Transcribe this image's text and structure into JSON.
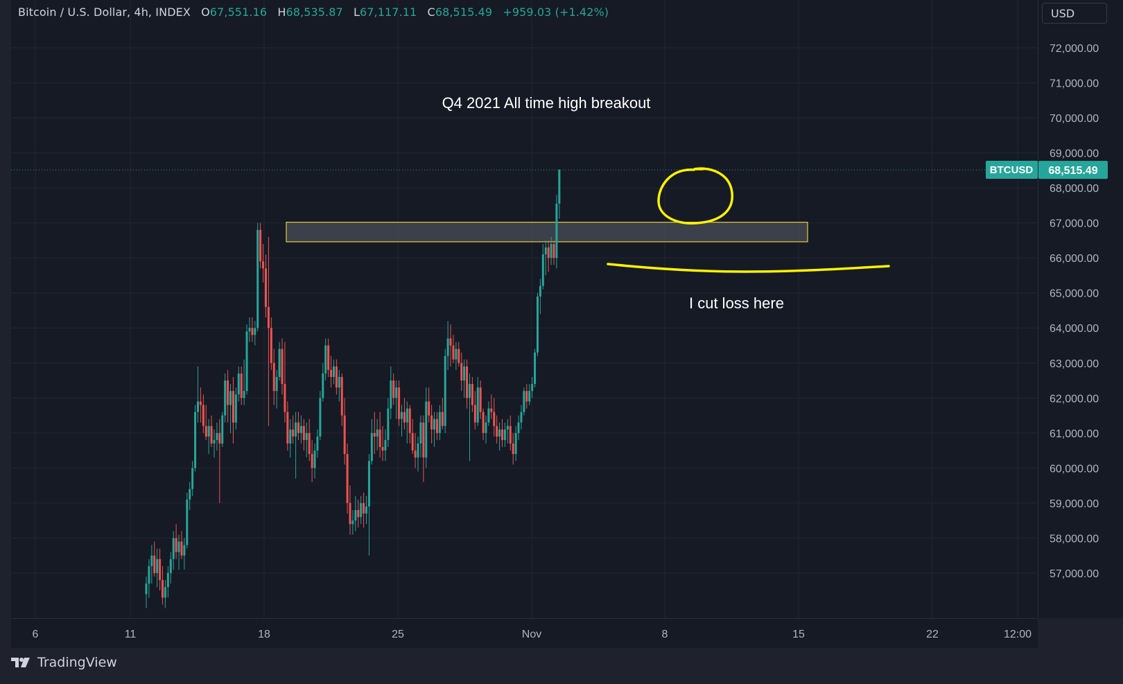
{
  "legend": {
    "symbol": "Bitcoin / U.S. Dollar, 4h, INDEX",
    "o_label": "O",
    "o_value": "67,551.16",
    "h_label": "H",
    "h_value": "68,535.87",
    "l_label": "L",
    "l_value": "67,117.11",
    "c_label": "C",
    "c_value": "68,515.49",
    "change": "+959.03 (+1.42%)"
  },
  "currency": "USD",
  "brand": "TradingView",
  "price_tag": {
    "symbol": "BTCUSD",
    "price": "68,515.49"
  },
  "colors": {
    "up": "#26a69a",
    "down": "#ef5350",
    "annotation": "#fff200",
    "background": "#161a25"
  },
  "annotations": {
    "title": "Q4 2021 All time high breakout",
    "cut_loss": "I cut loss here"
  },
  "chart_data": {
    "type": "candlestick",
    "timeframe": "4h",
    "y_ticks": [
      "72,000.00",
      "71,000.00",
      "70,000.00",
      "69,000.00",
      "68,000.00",
      "67,000.00",
      "66,000.00",
      "65,000.00",
      "64,000.00",
      "63,000.00",
      "62,000.00",
      "61,000.00",
      "60,000.00",
      "59,000.00",
      "58,000.00",
      "57,000.00"
    ],
    "x_ticks": [
      "6",
      "11",
      "18",
      "25",
      "Nov",
      "8",
      "15",
      "22",
      "12:00"
    ],
    "ylim": [
      56200,
      73300
    ],
    "last_price": 68515.49,
    "resistance_zone": [
      66500,
      67000
    ],
    "support_line": 65900,
    "series": [
      {
        "o": 56400,
        "h": 56900,
        "l": 56000,
        "c": 56700
      },
      {
        "o": 56700,
        "h": 57400,
        "l": 56300,
        "c": 57200
      },
      {
        "o": 57200,
        "h": 57800,
        "l": 56700,
        "c": 57500
      },
      {
        "o": 57500,
        "h": 57900,
        "l": 56900,
        "c": 57000
      },
      {
        "o": 57000,
        "h": 57700,
        "l": 56600,
        "c": 57400
      },
      {
        "o": 57400,
        "h": 57700,
        "l": 56500,
        "c": 56800
      },
      {
        "o": 56800,
        "h": 57200,
        "l": 56100,
        "c": 56300
      },
      {
        "o": 56300,
        "h": 56800,
        "l": 56000,
        "c": 56600
      },
      {
        "o": 56600,
        "h": 57200,
        "l": 56300,
        "c": 57000
      },
      {
        "o": 57000,
        "h": 57600,
        "l": 56700,
        "c": 57400
      },
      {
        "o": 57400,
        "h": 58200,
        "l": 57100,
        "c": 58000
      },
      {
        "o": 58000,
        "h": 58400,
        "l": 57400,
        "c": 57600
      },
      {
        "o": 57600,
        "h": 58100,
        "l": 57100,
        "c": 57900
      },
      {
        "o": 57900,
        "h": 58200,
        "l": 57400,
        "c": 57500
      },
      {
        "o": 57500,
        "h": 58000,
        "l": 57100,
        "c": 57800
      },
      {
        "o": 57800,
        "h": 59300,
        "l": 57700,
        "c": 59100
      },
      {
        "o": 59100,
        "h": 59600,
        "l": 58800,
        "c": 59400
      },
      {
        "o": 59400,
        "h": 60200,
        "l": 59200,
        "c": 60000
      },
      {
        "o": 60000,
        "h": 61800,
        "l": 59900,
        "c": 61600
      },
      {
        "o": 61600,
        "h": 62900,
        "l": 61300,
        "c": 61900
      },
      {
        "o": 61900,
        "h": 62300,
        "l": 61300,
        "c": 61800
      },
      {
        "o": 61800,
        "h": 62100,
        "l": 61000,
        "c": 61200
      },
      {
        "o": 61200,
        "h": 61800,
        "l": 60800,
        "c": 60900
      },
      {
        "o": 60900,
        "h": 61400,
        "l": 60400,
        "c": 61200
      },
      {
        "o": 61200,
        "h": 61500,
        "l": 60600,
        "c": 60700
      },
      {
        "o": 60700,
        "h": 61100,
        "l": 60300,
        "c": 60800
      },
      {
        "o": 60800,
        "h": 61300,
        "l": 60500,
        "c": 61000
      },
      {
        "o": 61000,
        "h": 61400,
        "l": 59000,
        "c": 60700
      },
      {
        "o": 60700,
        "h": 61600,
        "l": 60600,
        "c": 61500
      },
      {
        "o": 61500,
        "h": 62700,
        "l": 61300,
        "c": 62500
      },
      {
        "o": 62500,
        "h": 62800,
        "l": 61300,
        "c": 61800
      },
      {
        "o": 61800,
        "h": 62400,
        "l": 61000,
        "c": 62200
      },
      {
        "o": 62200,
        "h": 62600,
        "l": 60700,
        "c": 61300
      },
      {
        "o": 61300,
        "h": 62300,
        "l": 61100,
        "c": 62100
      },
      {
        "o": 62100,
        "h": 62900,
        "l": 61900,
        "c": 62700
      },
      {
        "o": 62700,
        "h": 62900,
        "l": 61800,
        "c": 62000
      },
      {
        "o": 62000,
        "h": 63100,
        "l": 61800,
        "c": 62200
      },
      {
        "o": 62200,
        "h": 64100,
        "l": 62100,
        "c": 63900
      },
      {
        "o": 63900,
        "h": 64300,
        "l": 63600,
        "c": 64000
      },
      {
        "o": 64000,
        "h": 64300,
        "l": 63600,
        "c": 63800
      },
      {
        "o": 63800,
        "h": 64200,
        "l": 63500,
        "c": 64000
      },
      {
        "o": 64000,
        "h": 67000,
        "l": 63900,
        "c": 66800
      },
      {
        "o": 66800,
        "h": 67000,
        "l": 65700,
        "c": 65900
      },
      {
        "o": 65900,
        "h": 66400,
        "l": 65300,
        "c": 65700
      },
      {
        "o": 65700,
        "h": 66100,
        "l": 64300,
        "c": 64600
      },
      {
        "o": 64600,
        "h": 66600,
        "l": 61200,
        "c": 64000
      },
      {
        "o": 64000,
        "h": 64300,
        "l": 62800,
        "c": 63000
      },
      {
        "o": 63000,
        "h": 63400,
        "l": 61800,
        "c": 62200
      },
      {
        "o": 62200,
        "h": 62800,
        "l": 61700,
        "c": 62600
      },
      {
        "o": 62600,
        "h": 63600,
        "l": 62500,
        "c": 63400
      },
      {
        "o": 63400,
        "h": 63700,
        "l": 62100,
        "c": 62400
      },
      {
        "o": 62400,
        "h": 63600,
        "l": 61300,
        "c": 61600
      },
      {
        "o": 61600,
        "h": 61900,
        "l": 60500,
        "c": 60700
      },
      {
        "o": 60700,
        "h": 61400,
        "l": 60300,
        "c": 61100
      },
      {
        "o": 61100,
        "h": 61500,
        "l": 60700,
        "c": 60900
      },
      {
        "o": 60900,
        "h": 61600,
        "l": 59700,
        "c": 61300
      },
      {
        "o": 61300,
        "h": 61600,
        "l": 60800,
        "c": 61000
      },
      {
        "o": 61000,
        "h": 61500,
        "l": 60700,
        "c": 61200
      },
      {
        "o": 61200,
        "h": 61400,
        "l": 60500,
        "c": 60800
      },
      {
        "o": 60800,
        "h": 61300,
        "l": 60300,
        "c": 61000
      },
      {
        "o": 61000,
        "h": 61400,
        "l": 60200,
        "c": 60400
      },
      {
        "o": 60400,
        "h": 60800,
        "l": 59600,
        "c": 60000
      },
      {
        "o": 60000,
        "h": 60700,
        "l": 59700,
        "c": 60500
      },
      {
        "o": 60500,
        "h": 61100,
        "l": 60300,
        "c": 60900
      },
      {
        "o": 60900,
        "h": 62200,
        "l": 60800,
        "c": 62000
      },
      {
        "o": 62000,
        "h": 63000,
        "l": 61900,
        "c": 62700
      },
      {
        "o": 62700,
        "h": 63700,
        "l": 62500,
        "c": 63500
      },
      {
        "o": 63500,
        "h": 63700,
        "l": 62600,
        "c": 62800
      },
      {
        "o": 62800,
        "h": 63200,
        "l": 62300,
        "c": 62600
      },
      {
        "o": 62600,
        "h": 63100,
        "l": 62400,
        "c": 62900
      },
      {
        "o": 62900,
        "h": 63100,
        "l": 62100,
        "c": 62300
      },
      {
        "o": 62300,
        "h": 62800,
        "l": 61900,
        "c": 62600
      },
      {
        "o": 62600,
        "h": 62700,
        "l": 61200,
        "c": 61500
      },
      {
        "o": 61500,
        "h": 62000,
        "l": 60100,
        "c": 60400
      },
      {
        "o": 60400,
        "h": 60700,
        "l": 58700,
        "c": 59000
      },
      {
        "o": 59000,
        "h": 59500,
        "l": 58100,
        "c": 58400
      },
      {
        "o": 58400,
        "h": 58800,
        "l": 58100,
        "c": 58500
      },
      {
        "o": 58500,
        "h": 59200,
        "l": 58200,
        "c": 58800
      },
      {
        "o": 58800,
        "h": 59100,
        "l": 58300,
        "c": 58600
      },
      {
        "o": 58600,
        "h": 59200,
        "l": 58400,
        "c": 59000
      },
      {
        "o": 59000,
        "h": 59300,
        "l": 58300,
        "c": 58700
      },
      {
        "o": 58700,
        "h": 59200,
        "l": 58400,
        "c": 58900
      },
      {
        "o": 58900,
        "h": 60400,
        "l": 57500,
        "c": 60200
      },
      {
        "o": 60200,
        "h": 61400,
        "l": 60100,
        "c": 61000
      },
      {
        "o": 61000,
        "h": 61600,
        "l": 60400,
        "c": 60900
      },
      {
        "o": 60900,
        "h": 61400,
        "l": 60500,
        "c": 61100
      },
      {
        "o": 61100,
        "h": 61600,
        "l": 60300,
        "c": 60600
      },
      {
        "o": 60600,
        "h": 61200,
        "l": 60200,
        "c": 60500
      },
      {
        "o": 60500,
        "h": 61100,
        "l": 60200,
        "c": 60800
      },
      {
        "o": 60800,
        "h": 62000,
        "l": 60600,
        "c": 61700
      },
      {
        "o": 61700,
        "h": 62900,
        "l": 61400,
        "c": 62500
      },
      {
        "o": 62500,
        "h": 62700,
        "l": 61800,
        "c": 62000
      },
      {
        "o": 62000,
        "h": 62500,
        "l": 61400,
        "c": 62300
      },
      {
        "o": 62300,
        "h": 62500,
        "l": 61200,
        "c": 61400
      },
      {
        "o": 61400,
        "h": 61800,
        "l": 60900,
        "c": 61600
      },
      {
        "o": 61600,
        "h": 62000,
        "l": 61100,
        "c": 61300
      },
      {
        "o": 61300,
        "h": 61900,
        "l": 60700,
        "c": 61700
      },
      {
        "o": 61700,
        "h": 61800,
        "l": 60700,
        "c": 61000
      },
      {
        "o": 61000,
        "h": 61400,
        "l": 60400,
        "c": 60500
      },
      {
        "o": 60500,
        "h": 61000,
        "l": 60000,
        "c": 60300
      },
      {
        "o": 60300,
        "h": 60900,
        "l": 59900,
        "c": 60700
      },
      {
        "o": 60700,
        "h": 61500,
        "l": 60300,
        "c": 61300
      },
      {
        "o": 61300,
        "h": 61500,
        "l": 59600,
        "c": 60300
      },
      {
        "o": 60300,
        "h": 62300,
        "l": 60000,
        "c": 61900
      },
      {
        "o": 61900,
        "h": 62300,
        "l": 61300,
        "c": 61500
      },
      {
        "o": 61500,
        "h": 61800,
        "l": 60700,
        "c": 61100
      },
      {
        "o": 61100,
        "h": 61600,
        "l": 60600,
        "c": 61400
      },
      {
        "o": 61400,
        "h": 61600,
        "l": 60800,
        "c": 61000
      },
      {
        "o": 61000,
        "h": 61800,
        "l": 60800,
        "c": 61600
      },
      {
        "o": 61600,
        "h": 62000,
        "l": 61100,
        "c": 61200
      },
      {
        "o": 61200,
        "h": 63400,
        "l": 61000,
        "c": 63200
      },
      {
        "o": 63200,
        "h": 64200,
        "l": 62800,
        "c": 63700
      },
      {
        "o": 63700,
        "h": 64100,
        "l": 62900,
        "c": 63500
      },
      {
        "o": 63500,
        "h": 63800,
        "l": 63000,
        "c": 63100
      },
      {
        "o": 63100,
        "h": 63600,
        "l": 62800,
        "c": 63400
      },
      {
        "o": 63400,
        "h": 63600,
        "l": 62900,
        "c": 63000
      },
      {
        "o": 63000,
        "h": 63300,
        "l": 62200,
        "c": 62500
      },
      {
        "o": 62500,
        "h": 63100,
        "l": 62000,
        "c": 62900
      },
      {
        "o": 62900,
        "h": 63100,
        "l": 61700,
        "c": 62000
      },
      {
        "o": 62000,
        "h": 62700,
        "l": 60200,
        "c": 62400
      },
      {
        "o": 62400,
        "h": 62600,
        "l": 61600,
        "c": 61800
      },
      {
        "o": 61800,
        "h": 62200,
        "l": 61100,
        "c": 61300
      },
      {
        "o": 61300,
        "h": 62600,
        "l": 61200,
        "c": 62300
      },
      {
        "o": 62300,
        "h": 62500,
        "l": 61400,
        "c": 61600
      },
      {
        "o": 61600,
        "h": 61700,
        "l": 60800,
        "c": 61000
      },
      {
        "o": 61000,
        "h": 61500,
        "l": 60700,
        "c": 61300
      },
      {
        "o": 61300,
        "h": 61900,
        "l": 61200,
        "c": 61700
      },
      {
        "o": 61700,
        "h": 62100,
        "l": 61400,
        "c": 61600
      },
      {
        "o": 61600,
        "h": 62000,
        "l": 60900,
        "c": 61200
      },
      {
        "o": 61200,
        "h": 61500,
        "l": 60700,
        "c": 60900
      },
      {
        "o": 60900,
        "h": 61300,
        "l": 60500,
        "c": 61100
      },
      {
        "o": 61100,
        "h": 61400,
        "l": 60600,
        "c": 60800
      },
      {
        "o": 60800,
        "h": 61300,
        "l": 60600,
        "c": 61100
      },
      {
        "o": 61100,
        "h": 61400,
        "l": 60700,
        "c": 61200
      },
      {
        "o": 61200,
        "h": 61500,
        "l": 60500,
        "c": 60700
      },
      {
        "o": 60700,
        "h": 61000,
        "l": 60100,
        "c": 60400
      },
      {
        "o": 60400,
        "h": 61200,
        "l": 60200,
        "c": 61000
      },
      {
        "o": 61000,
        "h": 61500,
        "l": 60800,
        "c": 61300
      },
      {
        "o": 61300,
        "h": 61800,
        "l": 61100,
        "c": 61600
      },
      {
        "o": 61600,
        "h": 62300,
        "l": 61500,
        "c": 62200
      },
      {
        "o": 62200,
        "h": 62400,
        "l": 61700,
        "c": 61900
      },
      {
        "o": 61900,
        "h": 62400,
        "l": 61800,
        "c": 62200
      },
      {
        "o": 62200,
        "h": 62600,
        "l": 62000,
        "c": 62400
      },
      {
        "o": 62400,
        "h": 63400,
        "l": 62300,
        "c": 63300
      },
      {
        "o": 63300,
        "h": 65000,
        "l": 63200,
        "c": 64900
      },
      {
        "o": 64900,
        "h": 65400,
        "l": 64400,
        "c": 65200
      },
      {
        "o": 65200,
        "h": 66400,
        "l": 65100,
        "c": 66100
      },
      {
        "o": 66100,
        "h": 66500,
        "l": 65500,
        "c": 66300
      },
      {
        "o": 66300,
        "h": 66500,
        "l": 65600,
        "c": 66000
      },
      {
        "o": 66000,
        "h": 66600,
        "l": 65800,
        "c": 66400
      },
      {
        "o": 66400,
        "h": 66500,
        "l": 65800,
        "c": 66000
      },
      {
        "o": 66000,
        "h": 67800,
        "l": 65700,
        "c": 67550
      },
      {
        "o": 67551,
        "h": 68536,
        "l": 67117,
        "c": 68515
      }
    ]
  }
}
